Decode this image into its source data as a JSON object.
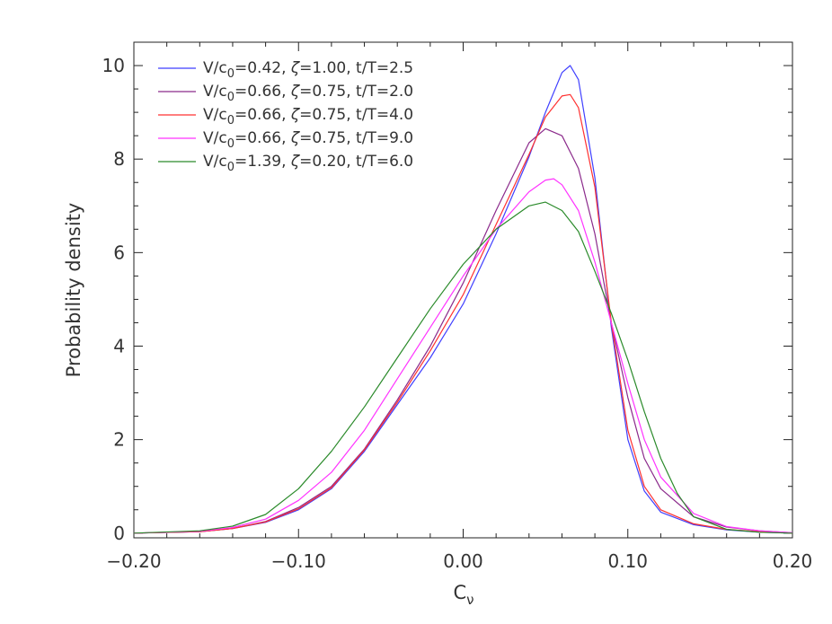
{
  "chart_data": {
    "type": "line",
    "title": "",
    "xlabel": "C",
    "xlabel_sub": "ν",
    "ylabel": "Probability density",
    "xlim": [
      -0.2,
      0.2
    ],
    "ylim": [
      -0.1,
      10.5
    ],
    "x_ticks": [
      -0.2,
      -0.1,
      0.0,
      0.1,
      0.2
    ],
    "x_tick_labels": [
      "−0.20",
      "−0.10",
      "0.00",
      "0.10",
      "0.20"
    ],
    "y_ticks": [
      0,
      2,
      4,
      6,
      8,
      10
    ],
    "y_tick_labels": [
      "0",
      "2",
      "4",
      "6",
      "8",
      "10"
    ],
    "legend_position": "top-left",
    "grid": false,
    "series": [
      {
        "name": "V/c0=0.42, ζ=1.00, t/T=2.5",
        "legend": {
          "a": "V/c",
          "sub": "0",
          "b": "=0.42, ",
          "greek": "ζ",
          "c": "=1.00, t/T=2.5"
        },
        "color": "#3f3fff",
        "x": [
          -0.2,
          -0.16,
          -0.14,
          -0.12,
          -0.1,
          -0.08,
          -0.06,
          -0.04,
          -0.02,
          0.0,
          0.02,
          0.04,
          0.05,
          0.06,
          0.065,
          0.07,
          0.08,
          0.09,
          0.1,
          0.11,
          0.12,
          0.14,
          0.16,
          0.18,
          0.2
        ],
        "y": [
          0.0,
          0.03,
          0.1,
          0.23,
          0.5,
          0.95,
          1.75,
          2.75,
          3.75,
          4.9,
          6.4,
          8.05,
          9.0,
          9.85,
          10.0,
          9.7,
          7.6,
          4.4,
          2.0,
          0.9,
          0.45,
          0.18,
          0.07,
          0.02,
          0.0
        ]
      },
      {
        "name": "V/c0=0.66, ζ=0.75, t/T=2.0",
        "legend": {
          "a": "V/c",
          "sub": "0",
          "b": "=0.66, ",
          "greek": "ζ",
          "c": "=0.75, t/T=2.0"
        },
        "color": "#8b2a8b",
        "x": [
          -0.2,
          -0.16,
          -0.14,
          -0.12,
          -0.1,
          -0.08,
          -0.06,
          -0.04,
          -0.02,
          0.0,
          0.02,
          0.04,
          0.05,
          0.06,
          0.07,
          0.08,
          0.09,
          0.1,
          0.11,
          0.12,
          0.14,
          0.16,
          0.18,
          0.2
        ],
        "y": [
          0.0,
          0.03,
          0.1,
          0.25,
          0.55,
          1.0,
          1.8,
          2.85,
          4.0,
          5.35,
          6.9,
          8.35,
          8.65,
          8.5,
          7.8,
          6.4,
          4.5,
          2.9,
          1.6,
          0.95,
          0.35,
          0.13,
          0.05,
          0.01
        ]
      },
      {
        "name": "V/c0=0.66, ζ=0.75, t/T=4.0",
        "legend": {
          "a": "V/c",
          "sub": "0",
          "b": "=0.66, ",
          "greek": "ζ",
          "c": "=0.75, t/T=4.0"
        },
        "color": "#ff3030",
        "x": [
          -0.2,
          -0.16,
          -0.14,
          -0.12,
          -0.1,
          -0.08,
          -0.06,
          -0.04,
          -0.02,
          0.0,
          0.02,
          0.04,
          0.05,
          0.06,
          0.065,
          0.07,
          0.08,
          0.09,
          0.1,
          0.11,
          0.12,
          0.14,
          0.16,
          0.18,
          0.2
        ],
        "y": [
          0.0,
          0.03,
          0.1,
          0.24,
          0.52,
          0.97,
          1.78,
          2.8,
          3.9,
          5.1,
          6.6,
          8.1,
          8.9,
          9.35,
          9.38,
          9.1,
          7.4,
          4.5,
          2.2,
          1.0,
          0.5,
          0.2,
          0.08,
          0.03,
          0.0
        ]
      },
      {
        "name": "V/c0=0.66, ζ=0.75, t/T=9.0",
        "legend": {
          "a": "V/c",
          "sub": "0",
          "b": "=0.66, ",
          "greek": "ζ",
          "c": "=0.75, t/T=9.0"
        },
        "color": "#ff33ff",
        "x": [
          -0.2,
          -0.16,
          -0.14,
          -0.12,
          -0.1,
          -0.08,
          -0.06,
          -0.04,
          -0.02,
          0.0,
          0.02,
          0.04,
          0.05,
          0.055,
          0.06,
          0.07,
          0.08,
          0.09,
          0.1,
          0.11,
          0.12,
          0.14,
          0.16,
          0.18,
          0.2
        ],
        "y": [
          0.0,
          0.04,
          0.12,
          0.3,
          0.7,
          1.3,
          2.2,
          3.3,
          4.4,
          5.5,
          6.5,
          7.3,
          7.55,
          7.58,
          7.45,
          6.9,
          5.8,
          4.5,
          3.2,
          2.0,
          1.2,
          0.42,
          0.14,
          0.05,
          0.01
        ]
      },
      {
        "name": "V/c0=1.39, ζ=0.20, t/T=6.0",
        "legend": {
          "a": "V/c",
          "sub": "0",
          "b": "=1.39, ",
          "greek": "ζ",
          "c": "=0.20, t/T=6.0"
        },
        "color": "#2a8a2a",
        "x": [
          -0.2,
          -0.16,
          -0.14,
          -0.12,
          -0.1,
          -0.08,
          -0.06,
          -0.04,
          -0.02,
          0.0,
          0.02,
          0.04,
          0.05,
          0.06,
          0.07,
          0.08,
          0.09,
          0.1,
          0.11,
          0.12,
          0.13,
          0.14,
          0.16,
          0.18,
          0.2
        ],
        "y": [
          0.0,
          0.05,
          0.15,
          0.4,
          0.95,
          1.75,
          2.7,
          3.75,
          4.8,
          5.75,
          6.5,
          7.0,
          7.08,
          6.9,
          6.45,
          5.6,
          4.7,
          3.7,
          2.6,
          1.6,
          0.85,
          0.35,
          0.08,
          0.02,
          0.0
        ]
      }
    ]
  }
}
